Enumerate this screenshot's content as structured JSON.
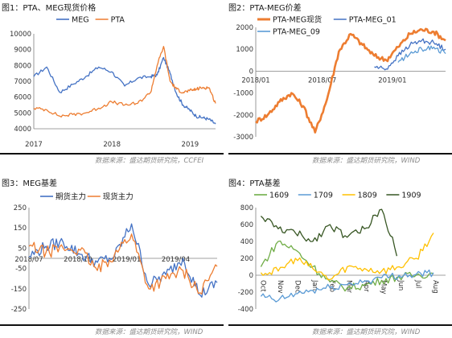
{
  "figures": [
    {
      "title": "图1：PTA、MEG现货价格",
      "source": "数据来源：盛达期货研究院，CCFEI"
    },
    {
      "title": "图2：PTA-MEG价差",
      "source": "数据来源：盛达期货研究院，WIND"
    },
    {
      "title": "图3：MEG基差",
      "source": "数据来源：盛达期货研究院，WIND"
    },
    {
      "title": "图4：PTA基差",
      "source": "数据来源：盛达期货研究院，WIND"
    }
  ],
  "chart_data": [
    {
      "type": "line",
      "x": [
        "2017-01",
        "2017-03",
        "2017-05",
        "2017-07",
        "2017-09",
        "2017-11",
        "2018-01",
        "2018-03",
        "2018-05",
        "2018-07",
        "2018-08",
        "2018-09",
        "2018-10",
        "2018-11",
        "2018-12",
        "2019-01",
        "2019-02",
        "2019-03",
        "2019-04",
        "2019-05"
      ],
      "series": [
        {
          "name": "MEG",
          "color": "#4472C4",
          "values": [
            7300,
            7900,
            6300,
            6800,
            7300,
            7900,
            7600,
            6700,
            7200,
            7300,
            7400,
            8500,
            7500,
            6200,
            5500,
            5200,
            4800,
            4700,
            4600,
            4300
          ]
        },
        {
          "name": "PTA",
          "color": "#ED7D31",
          "values": [
            5300,
            5200,
            4800,
            4900,
            5000,
            5300,
            5700,
            5500,
            5600,
            6300,
            8000,
            9200,
            7000,
            6500,
            6300,
            6400,
            6500,
            6600,
            6600,
            5600
          ]
        }
      ],
      "yticks": [
        4000,
        5000,
        6000,
        7000,
        8000,
        9000,
        10000
      ],
      "ylim": [
        4000,
        10000
      ],
      "xtick_labels": [
        "2017",
        "2018",
        "2019"
      ],
      "xlim": [
        "2017-01",
        "2019-05"
      ],
      "legend": "top"
    },
    {
      "type": "line",
      "x": [
        "2018-01",
        "2018-02",
        "2018-03",
        "2018-04",
        "2018-05",
        "2018-06",
        "2018-07",
        "2018-08",
        "2018-09",
        "2018-10",
        "2018-11",
        "2018-12",
        "2019-01",
        "2019-02",
        "2019-03",
        "2019-04",
        "2019-05"
      ],
      "series": [
        {
          "name": "PTA-MEG现货",
          "color": "#ED7D31",
          "values": [
            -2300,
            -2000,
            -1400,
            -1000,
            -1600,
            -2800,
            -1300,
            900,
            1700,
            1200,
            700,
            500,
            1100,
            1700,
            1900,
            1800,
            1400
          ]
        },
        {
          "name": "PTA-MEG_01",
          "color": "#4472C4",
          "values": [
            null,
            null,
            null,
            null,
            null,
            null,
            null,
            null,
            null,
            null,
            200,
            100,
            700,
            1200,
            1400,
            1300,
            1000
          ]
        },
        {
          "name": "PTA-MEG_09",
          "color": "#5B9BD5",
          "values": [
            null,
            null,
            null,
            null,
            null,
            null,
            null,
            null,
            null,
            null,
            null,
            null,
            400,
            800,
            1000,
            1100,
            800
          ]
        }
      ],
      "yticks": [
        -3000,
        -2000,
        -1000,
        0,
        1000,
        2000
      ],
      "ylim": [
        -3000,
        2000
      ],
      "xtick_labels": [
        "2018/01",
        "2018/07",
        "2019/01"
      ],
      "xlim": [
        "2018-01",
        "2019-05"
      ],
      "legend": "top-left"
    },
    {
      "type": "line",
      "x": [
        "2018-07",
        "2018-08",
        "2018-09",
        "2018-10",
        "2018-11",
        "2018-12",
        "2019-01",
        "2019-02",
        "2019-03",
        "2019-04",
        "2019-05",
        "2019-06"
      ],
      "series": [
        {
          "name": "期货主力",
          "color": "#4472C4",
          "values": [
            10,
            60,
            80,
            20,
            -20,
            10,
            170,
            -130,
            -80,
            0,
            -180,
            -120
          ]
        },
        {
          "name": "现货主力",
          "color": "#ED7D31",
          "values": [
            60,
            30,
            50,
            40,
            -60,
            20,
            120,
            -150,
            -100,
            -60,
            -170,
            -40
          ]
        }
      ],
      "yticks": [
        -250,
        -150,
        -50,
        50,
        150,
        250
      ],
      "ylim": [
        -250,
        250
      ],
      "xtick_labels": [
        "2018/07",
        "2018/10",
        "2019/01",
        "2019/04"
      ],
      "xlim": [
        "2018-07",
        "2019-06"
      ],
      "legend": "top"
    },
    {
      "type": "line",
      "x": [
        "Oct",
        "Nov",
        "Dec",
        "Jan",
        "Feb",
        "Mar",
        "Apr",
        "May",
        "Jun",
        "Jul",
        "Aug"
      ],
      "series": [
        {
          "name": "1609",
          "color": "#70AD47",
          "values": [
            100,
            400,
            300,
            100,
            -80,
            -150,
            -120,
            -60,
            -20,
            0,
            20
          ]
        },
        {
          "name": "1709",
          "color": "#5B9BD5",
          "values": [
            -250,
            -300,
            -220,
            -180,
            -150,
            -110,
            -70,
            -30,
            0,
            10,
            30
          ]
        },
        {
          "name": "1809",
          "color": "#FFC000",
          "values": [
            30,
            50,
            200,
            80,
            -50,
            100,
            80,
            50,
            100,
            200,
            500
          ]
        },
        {
          "name": "1909",
          "color": "#375623",
          "values": [
            700,
            550,
            500,
            400,
            600,
            450,
            550,
            780,
            200,
            null,
            null
          ]
        }
      ],
      "yticks": [
        -400,
        -200,
        0,
        200,
        400,
        600,
        800
      ],
      "ylim": [
        -400,
        800
      ],
      "xtick_labels": [
        "Oct",
        "Nov",
        "Dec",
        "Jan",
        "Feb",
        "Mar",
        "Apr",
        "May",
        "Jun",
        "Jul",
        "Aug"
      ],
      "legend": "top"
    }
  ]
}
